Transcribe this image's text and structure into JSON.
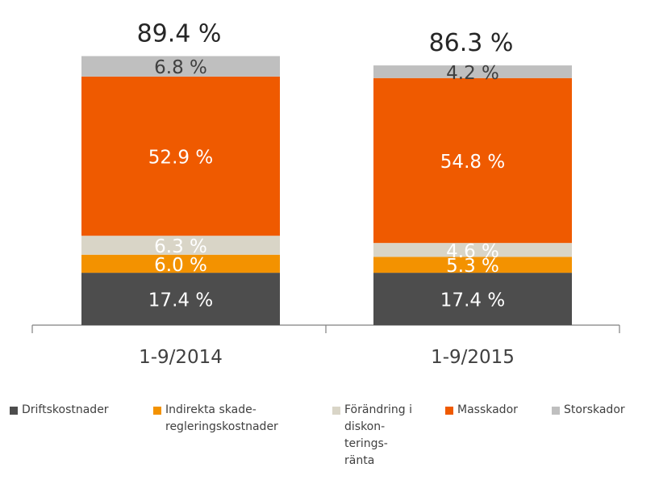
{
  "chart_data": {
    "type": "bar",
    "stacked": true,
    "categories": [
      "1-9/2014",
      "1-9/2015"
    ],
    "totals": [
      "89.4 %",
      "86.3 %"
    ],
    "series": [
      {
        "name": "Driftskostnader",
        "values": [
          17.4,
          17.4
        ],
        "labels": [
          "17.4 %",
          "17.4 %"
        ],
        "color": "#4d4d4d",
        "label_color": "#ffffff"
      },
      {
        "name": "Indirekta skade-\nregleringskostnader",
        "values": [
          6.0,
          5.3
        ],
        "labels": [
          "6.0 %",
          "5.3 %"
        ],
        "color": "#f39200",
        "label_color": "#ffffff"
      },
      {
        "name": "Förändring i\ndiskon-\nterings-\nränta",
        "values": [
          6.3,
          4.6
        ],
        "labels": [
          "6.3 %",
          "4.6 %"
        ],
        "color": "#d9d5c7",
        "label_color": "#ffffff"
      },
      {
        "name": "Masskador",
        "values": [
          52.9,
          54.8
        ],
        "labels": [
          "52.9 %",
          "54.8 %"
        ],
        "color": "#ef5a00",
        "label_color": "#ffffff"
      },
      {
        "name": "Storskador",
        "values": [
          6.8,
          4.2
        ],
        "labels": [
          "6.8 %",
          "4.2 %"
        ],
        "color": "#bfbfbf",
        "label_color": "#404040"
      }
    ],
    "legend_position": "bottom",
    "grid": false
  }
}
